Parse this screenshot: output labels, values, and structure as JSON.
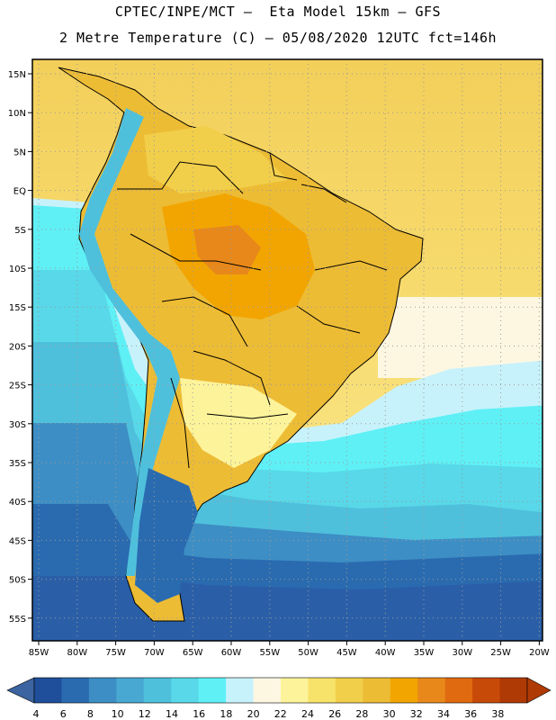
{
  "header": {
    "line1": "CPTEC/INPE/MCT –  Eta Model 15km – GFS",
    "line2": "2 Metre Temperature (C) – 05/08/2020 12UTC fct=146h"
  },
  "map": {
    "lat_labels": [
      "15N",
      "10N",
      "5N",
      "EQ",
      "5S",
      "10S",
      "15S",
      "20S",
      "25S",
      "30S",
      "35S",
      "40S",
      "45S",
      "50S",
      "55S"
    ],
    "lon_labels": [
      "85W",
      "80W",
      "75W",
      "70W",
      "65W",
      "60W",
      "55W",
      "50W",
      "45W",
      "40W",
      "35W",
      "30W",
      "25W",
      "20W"
    ]
  },
  "colorbar": {
    "labels": [
      "4",
      "6",
      "8",
      "10",
      "12",
      "14",
      "16",
      "18",
      "20",
      "22",
      "24",
      "26",
      "28",
      "30",
      "32",
      "34",
      "36",
      "38"
    ],
    "colors": [
      "#1f4f9a",
      "#2a6bb0",
      "#3d8ec4",
      "#48a8d2",
      "#4fc0dc",
      "#58d8e8",
      "#5ff0f6",
      "#c8f2fb",
      "#fdf7e2",
      "#fdf39a",
      "#f7e26a",
      "#f2cf4a",
      "#edbc35",
      "#f2a500",
      "#e8881a",
      "#e06a10",
      "#c84a08",
      "#b03a05"
    ],
    "left_arrow_color": "#3c64a0",
    "right_arrow_color": "#b03a05"
  }
}
